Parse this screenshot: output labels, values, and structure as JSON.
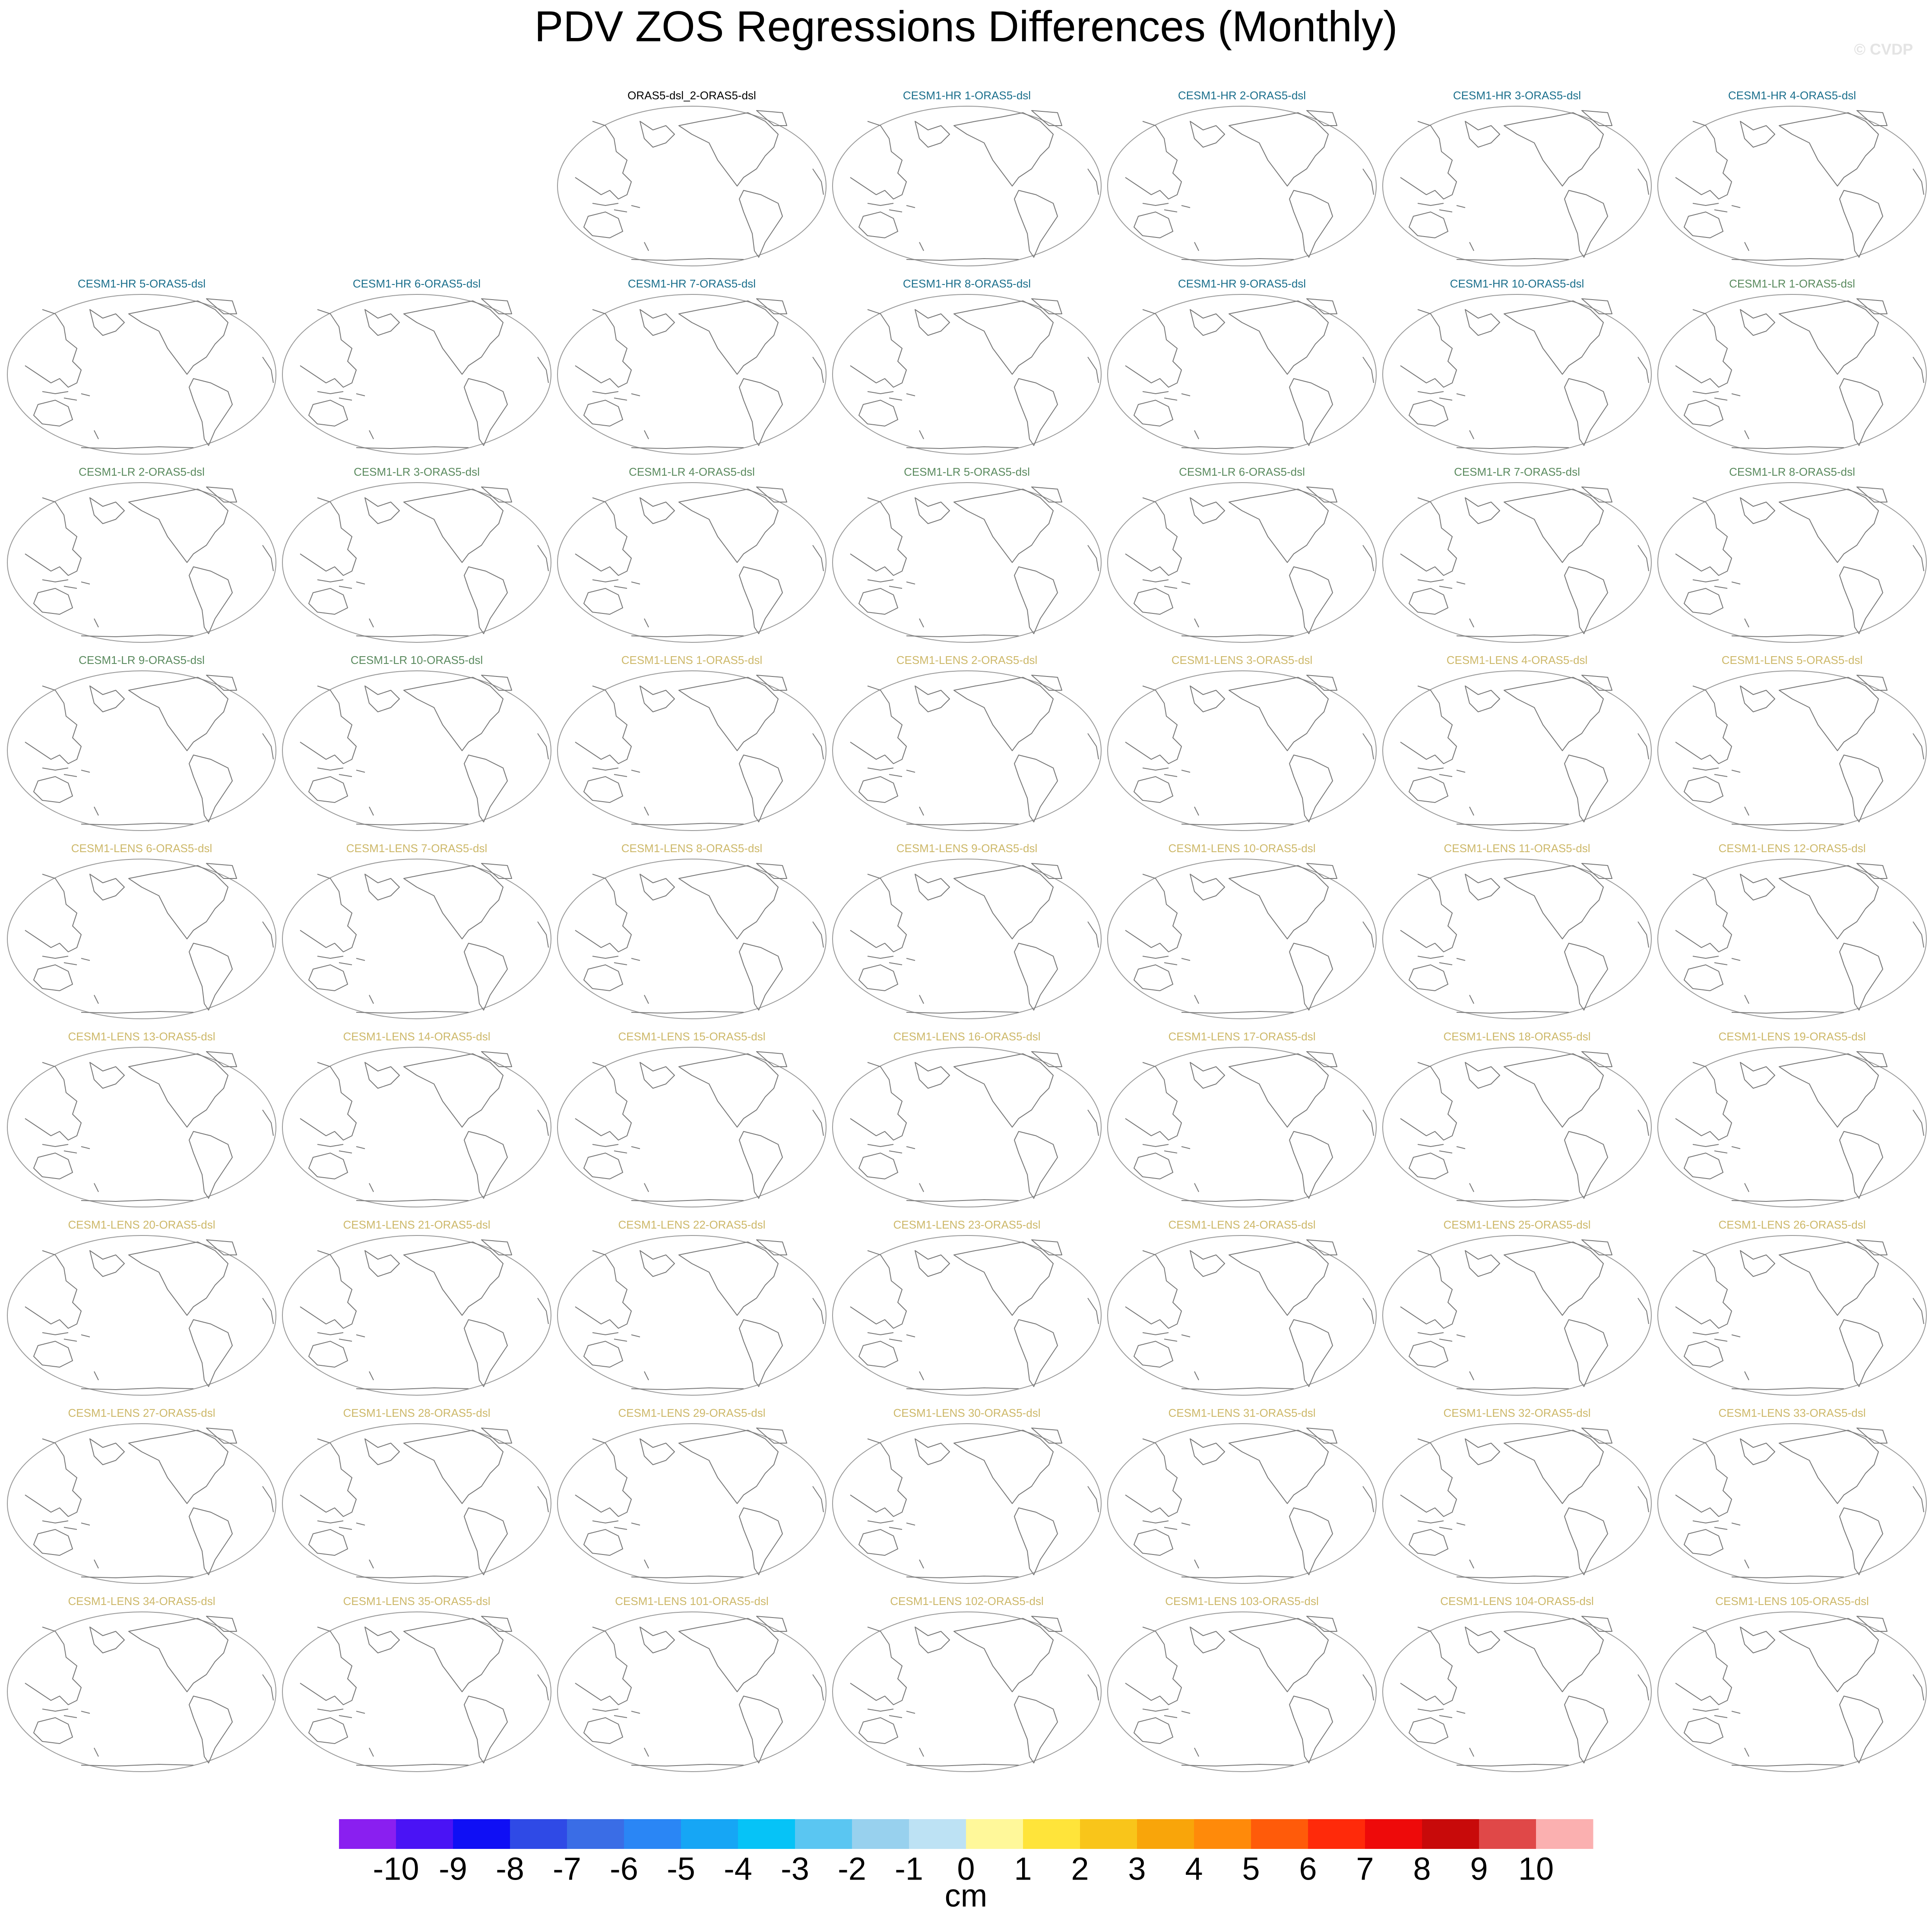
{
  "chart_data": {
    "type": "map-panels",
    "title": "PDV ZOS Regressions Differences (Monthly)",
    "watermark": "© CVDP",
    "groups": [
      {
        "color": "#000000",
        "titles": [
          "ORAS5-dsl_2-ORAS5-dsl"
        ]
      },
      {
        "color": "#1b6f8c",
        "titles": [
          "CESM1-HR 1-ORAS5-dsl",
          "CESM1-HR 2-ORAS5-dsl",
          "CESM1-HR 3-ORAS5-dsl",
          "CESM1-HR 4-ORAS5-dsl",
          "CESM1-HR 5-ORAS5-dsl",
          "CESM1-HR 6-ORAS5-dsl",
          "CESM1-HR 7-ORAS5-dsl",
          "CESM1-HR 8-ORAS5-dsl",
          "CESM1-HR 9-ORAS5-dsl",
          "CESM1-HR 10-ORAS5-dsl"
        ]
      },
      {
        "color": "#5a8a5e",
        "titles": [
          "CESM1-LR 1-ORAS5-dsl",
          "CESM1-LR 2-ORAS5-dsl",
          "CESM1-LR 3-ORAS5-dsl",
          "CESM1-LR 4-ORAS5-dsl",
          "CESM1-LR 5-ORAS5-dsl",
          "CESM1-LR 6-ORAS5-dsl",
          "CESM1-LR 7-ORAS5-dsl",
          "CESM1-LR 8-ORAS5-dsl",
          "CESM1-LR 9-ORAS5-dsl",
          "CESM1-LR 10-ORAS5-dsl"
        ]
      },
      {
        "color": "#cdb869",
        "titles": [
          "CESM1-LENS 1-ORAS5-dsl",
          "CESM1-LENS 2-ORAS5-dsl",
          "CESM1-LENS 3-ORAS5-dsl",
          "CESM1-LENS 4-ORAS5-dsl",
          "CESM1-LENS 5-ORAS5-dsl",
          "CESM1-LENS 6-ORAS5-dsl",
          "CESM1-LENS 7-ORAS5-dsl",
          "CESM1-LENS 8-ORAS5-dsl",
          "CESM1-LENS 9-ORAS5-dsl",
          "CESM1-LENS 10-ORAS5-dsl",
          "CESM1-LENS 11-ORAS5-dsl",
          "CESM1-LENS 12-ORAS5-dsl",
          "CESM1-LENS 13-ORAS5-dsl",
          "CESM1-LENS 14-ORAS5-dsl",
          "CESM1-LENS 15-ORAS5-dsl",
          "CESM1-LENS 16-ORAS5-dsl",
          "CESM1-LENS 17-ORAS5-dsl",
          "CESM1-LENS 18-ORAS5-dsl",
          "CESM1-LENS 19-ORAS5-dsl",
          "CESM1-LENS 20-ORAS5-dsl",
          "CESM1-LENS 21-ORAS5-dsl",
          "CESM1-LENS 22-ORAS5-dsl",
          "CESM1-LENS 23-ORAS5-dsl",
          "CESM1-LENS 24-ORAS5-dsl",
          "CESM1-LENS 25-ORAS5-dsl",
          "CESM1-LENS 26-ORAS5-dsl",
          "CESM1-LENS 27-ORAS5-dsl",
          "CESM1-LENS 28-ORAS5-dsl",
          "CESM1-LENS 29-ORAS5-dsl",
          "CESM1-LENS 30-ORAS5-dsl",
          "CESM1-LENS 31-ORAS5-dsl",
          "CESM1-LENS 32-ORAS5-dsl",
          "CESM1-LENS 33-ORAS5-dsl",
          "CESM1-LENS 34-ORAS5-dsl",
          "CESM1-LENS 35-ORAS5-dsl",
          "CESM1-LENS 101-ORAS5-dsl",
          "CESM1-LENS 102-ORAS5-dsl",
          "CESM1-LENS 103-ORAS5-dsl",
          "CESM1-LENS 104-ORAS5-dsl",
          "CESM1-LENS 105-ORAS5-dsl"
        ]
      }
    ],
    "colorbar": {
      "levels": [
        -10,
        -9,
        -8,
        -7,
        -6,
        -5,
        -4,
        -3,
        -2,
        -1,
        0,
        1,
        2,
        3,
        4,
        5,
        6,
        7,
        8,
        9,
        10
      ],
      "colors": [
        "#8a1ff0",
        "#4a13f5",
        "#0f0ff5",
        "#2f4ae6",
        "#3a6de6",
        "#2a86f5",
        "#16a6f5",
        "#06c3f7",
        "#5ac6f2",
        "#98d1ee",
        "#bde2f4",
        "#fff89a",
        "#ffe43a",
        "#f9c51a",
        "#f9a50a",
        "#ff8a0a",
        "#ff5b0a",
        "#ff2a0a",
        "#ee0a0a",
        "#c80a0a",
        "#e04848",
        "#fbb0b0"
      ],
      "label": "cm"
    }
  }
}
